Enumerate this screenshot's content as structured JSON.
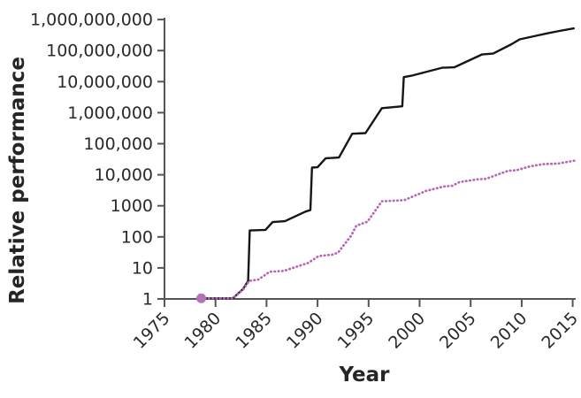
{
  "chart_data": {
    "type": "line",
    "title": "",
    "xlabel": "Year",
    "ylabel": "Relative performance",
    "x_axis": {
      "ticks": [
        1975,
        1980,
        1985,
        1990,
        1995,
        2000,
        2005,
        2010,
        2015
      ],
      "tick_labels": [
        "1975",
        "1980",
        "1985",
        "1990",
        "1995",
        "2000",
        "2005",
        "2010",
        "2015"
      ],
      "range": [
        1974.9,
        2015.4
      ]
    },
    "y_axis": {
      "scale": "log",
      "tick_values": [
        1,
        10,
        100,
        1000,
        10000,
        100000,
        1000000,
        10000000,
        100000000,
        1000000000
      ],
      "tick_labels": [
        "1",
        "10",
        "100",
        "1000",
        "10,000",
        "100,000",
        "1,000,000",
        "10,000,000",
        "100,000,000",
        "1,000,000,000"
      ],
      "range": [
        1,
        1000000000
      ]
    },
    "grid": false,
    "legend": "none",
    "series": [
      {
        "id": "solid-black-line",
        "style": "solid",
        "color": "#161616",
        "points": [
          [
            1978.6,
            1.05
          ],
          [
            1981.7,
            1.05
          ],
          [
            1982.7,
            2.1
          ],
          [
            1983.2,
            3.8
          ],
          [
            1983.35,
            160
          ],
          [
            1984.9,
            168
          ],
          [
            1985.6,
            300
          ],
          [
            1986.8,
            320
          ],
          [
            1988.8,
            650
          ],
          [
            1989.3,
            730
          ],
          [
            1989.45,
            17000
          ],
          [
            1990.0,
            17500
          ],
          [
            1990.8,
            34000
          ],
          [
            1992.1,
            36000
          ],
          [
            1993.4,
            210000
          ],
          [
            1994.7,
            220000
          ],
          [
            1996.3,
            1400000
          ],
          [
            1998.3,
            1600000
          ],
          [
            1998.45,
            14000000
          ],
          [
            1999.2,
            15500000
          ],
          [
            2002.2,
            28000000
          ],
          [
            2003.4,
            29000000
          ],
          [
            2006.1,
            75000000
          ],
          [
            2007.2,
            80000000
          ],
          [
            2009.0,
            160000000
          ],
          [
            2009.8,
            230000000
          ],
          [
            2011.0,
            280000000
          ],
          [
            2012.5,
            360000000
          ],
          [
            2013.7,
            430000000
          ],
          [
            2015.1,
            520000000
          ]
        ]
      },
      {
        "id": "dotted-purple-line",
        "style": "dotted",
        "color": "#b465b3",
        "points": [
          [
            1978.6,
            1.05
          ],
          [
            1981.7,
            1.05
          ],
          [
            1982.7,
            2.0
          ],
          [
            1983.3,
            3.8
          ],
          [
            1984.2,
            4.2
          ],
          [
            1985.3,
            7.5
          ],
          [
            1986.7,
            8.0
          ],
          [
            1989.1,
            14.5
          ],
          [
            1990.1,
            24
          ],
          [
            1991.5,
            27
          ],
          [
            1992.0,
            31
          ],
          [
            1993.3,
            110
          ],
          [
            1993.8,
            230
          ],
          [
            1994.9,
            310
          ],
          [
            1996.3,
            1400
          ],
          [
            1998.5,
            1520
          ],
          [
            2000.6,
            3000
          ],
          [
            2002.4,
            4200
          ],
          [
            2003.2,
            4400
          ],
          [
            2003.9,
            5800
          ],
          [
            2005.8,
            7200
          ],
          [
            2006.5,
            7400
          ],
          [
            2008.7,
            13500
          ],
          [
            2009.5,
            14000
          ],
          [
            2010.8,
            18500
          ],
          [
            2012.1,
            22000
          ],
          [
            2013.6,
            23000
          ],
          [
            2015.2,
            28500
          ]
        ]
      }
    ],
    "start_marker": {
      "x": 1978.6,
      "y": 1.05,
      "shape": "circle",
      "color": "#b672b6"
    }
  },
  "colors": {
    "axis": "#545457",
    "tick_text": "#2a2a2c",
    "background": "#ffffff"
  }
}
